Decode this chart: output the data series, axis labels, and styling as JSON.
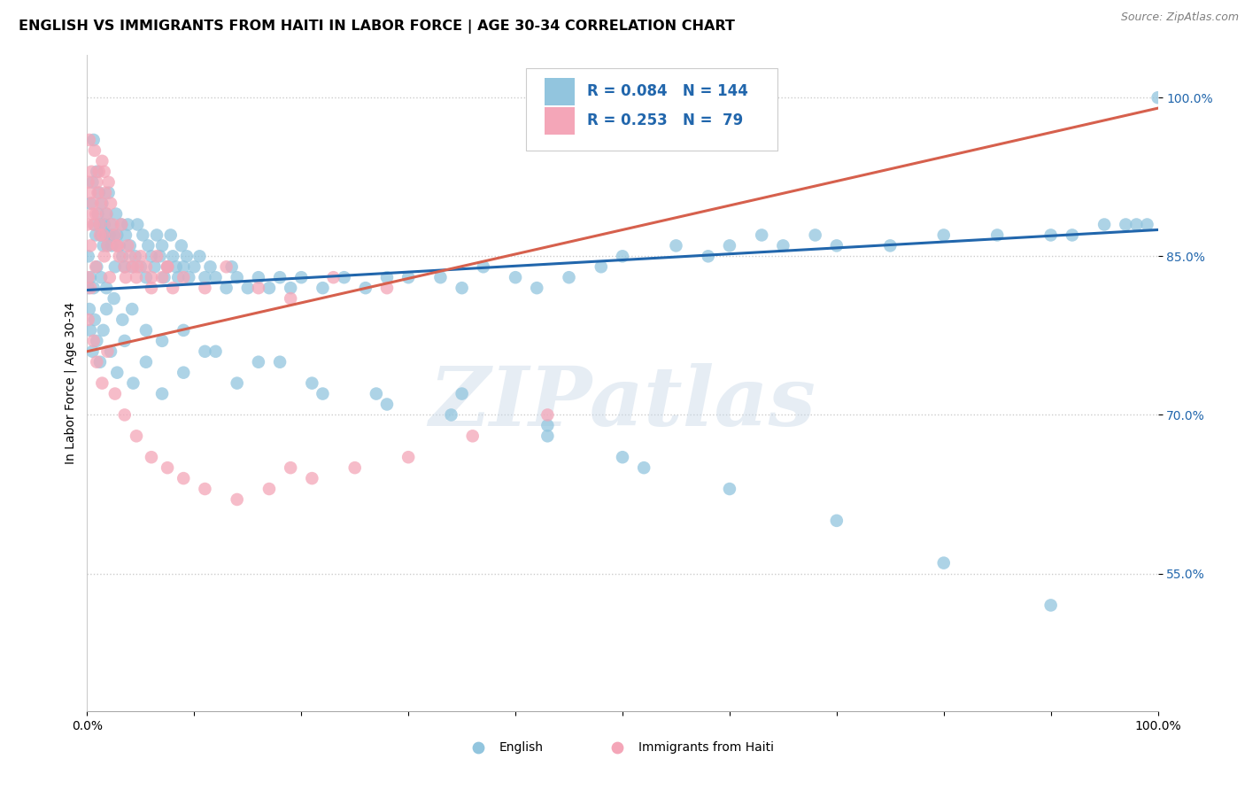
{
  "title": "ENGLISH VS IMMIGRANTS FROM HAITI IN LABOR FORCE | AGE 30-34 CORRELATION CHART",
  "source": "Source: ZipAtlas.com",
  "ylabel": "In Labor Force | Age 30-34",
  "xlim": [
    0.0,
    1.0
  ],
  "ylim": [
    0.42,
    1.04
  ],
  "yticks": [
    0.55,
    0.7,
    0.85,
    1.0
  ],
  "ytick_labels": [
    "55.0%",
    "70.0%",
    "85.0%",
    "100.0%"
  ],
  "xtick_positions": [
    0.0,
    0.1,
    0.2,
    0.3,
    0.4,
    0.5,
    0.6,
    0.7,
    0.8,
    0.9,
    1.0
  ],
  "xtick_labels": [
    "0.0%",
    "",
    "",
    "",
    "",
    "",
    "",
    "",
    "",
    "",
    "100.0%"
  ],
  "english_color": "#92c5de",
  "haiti_color": "#f4a6b8",
  "english_line_color": "#2166ac",
  "haiti_line_color": "#d6604d",
  "text_color": "#2166ac",
  "background_color": "#ffffff",
  "watermark": "ZIPatlas",
  "title_fontsize": 11.5,
  "label_fontsize": 10,
  "tick_fontsize": 10,
  "legend_text_1": "R = 0.084   N = 144",
  "legend_text_2": "R = 0.253   N =  79",
  "english_scatter": {
    "x": [
      0.003,
      0.005,
      0.006,
      0.007,
      0.008,
      0.009,
      0.01,
      0.011,
      0.012,
      0.013,
      0.014,
      0.015,
      0.016,
      0.017,
      0.018,
      0.019,
      0.02,
      0.021,
      0.022,
      0.023,
      0.025,
      0.026,
      0.027,
      0.028,
      0.03,
      0.032,
      0.033,
      0.035,
      0.036,
      0.038,
      0.04,
      0.042,
      0.045,
      0.047,
      0.05,
      0.052,
      0.055,
      0.057,
      0.06,
      0.063,
      0.065,
      0.068,
      0.07,
      0.072,
      0.075,
      0.078,
      0.08,
      0.083,
      0.085,
      0.088,
      0.09,
      0.093,
      0.095,
      0.1,
      0.105,
      0.11,
      0.115,
      0.12,
      0.13,
      0.135,
      0.14,
      0.15,
      0.16,
      0.17,
      0.18,
      0.19,
      0.2,
      0.22,
      0.24,
      0.26,
      0.28,
      0.3,
      0.33,
      0.35,
      0.37,
      0.4,
      0.42,
      0.45,
      0.48,
      0.5,
      0.55,
      0.58,
      0.6,
      0.63,
      0.65,
      0.68,
      0.7,
      0.75,
      0.8,
      0.85,
      0.9,
      0.92,
      0.95,
      0.97,
      0.98,
      0.99,
      1.0,
      0.001,
      0.002,
      0.003,
      0.005,
      0.007,
      0.009,
      0.012,
      0.015,
      0.018,
      0.022,
      0.028,
      0.035,
      0.043,
      0.055,
      0.07,
      0.09,
      0.11,
      0.14,
      0.18,
      0.22,
      0.28,
      0.35,
      0.43,
      0.5,
      0.6,
      0.7,
      0.8,
      0.9,
      0.001,
      0.003,
      0.006,
      0.009,
      0.013,
      0.018,
      0.025,
      0.033,
      0.042,
      0.055,
      0.07,
      0.09,
      0.12,
      0.16,
      0.21,
      0.27,
      0.34,
      0.43,
      0.52
    ],
    "y": [
      0.9,
      0.92,
      0.96,
      0.88,
      0.87,
      0.93,
      0.89,
      0.91,
      0.88,
      0.87,
      0.9,
      0.86,
      0.88,
      0.87,
      0.89,
      0.86,
      0.91,
      0.87,
      0.88,
      0.86,
      0.87,
      0.84,
      0.89,
      0.87,
      0.86,
      0.88,
      0.85,
      0.84,
      0.87,
      0.88,
      0.86,
      0.84,
      0.85,
      0.88,
      0.84,
      0.87,
      0.83,
      0.86,
      0.85,
      0.84,
      0.87,
      0.85,
      0.86,
      0.83,
      0.84,
      0.87,
      0.85,
      0.84,
      0.83,
      0.86,
      0.84,
      0.85,
      0.83,
      0.84,
      0.85,
      0.83,
      0.84,
      0.83,
      0.82,
      0.84,
      0.83,
      0.82,
      0.83,
      0.82,
      0.83,
      0.82,
      0.83,
      0.82,
      0.83,
      0.82,
      0.83,
      0.83,
      0.83,
      0.82,
      0.84,
      0.83,
      0.82,
      0.83,
      0.84,
      0.85,
      0.86,
      0.85,
      0.86,
      0.87,
      0.86,
      0.87,
      0.86,
      0.86,
      0.87,
      0.87,
      0.87,
      0.87,
      0.88,
      0.88,
      0.88,
      0.88,
      1.0,
      0.82,
      0.8,
      0.78,
      0.76,
      0.79,
      0.77,
      0.75,
      0.78,
      0.8,
      0.76,
      0.74,
      0.77,
      0.73,
      0.75,
      0.72,
      0.74,
      0.76,
      0.73,
      0.75,
      0.72,
      0.71,
      0.72,
      0.69,
      0.66,
      0.63,
      0.6,
      0.56,
      0.52,
      0.85,
      0.83,
      0.82,
      0.84,
      0.83,
      0.82,
      0.81,
      0.79,
      0.8,
      0.78,
      0.77,
      0.78,
      0.76,
      0.75,
      0.73,
      0.72,
      0.7,
      0.68,
      0.65
    ]
  },
  "haiti_scatter": {
    "x": [
      0.0,
      0.001,
      0.002,
      0.003,
      0.004,
      0.005,
      0.006,
      0.007,
      0.008,
      0.009,
      0.01,
      0.011,
      0.012,
      0.013,
      0.014,
      0.015,
      0.016,
      0.017,
      0.018,
      0.019,
      0.02,
      0.022,
      0.024,
      0.026,
      0.028,
      0.03,
      0.032,
      0.035,
      0.038,
      0.04,
      0.043,
      0.046,
      0.05,
      0.055,
      0.06,
      0.065,
      0.07,
      0.075,
      0.08,
      0.001,
      0.003,
      0.005,
      0.008,
      0.012,
      0.016,
      0.021,
      0.028,
      0.036,
      0.047,
      0.06,
      0.075,
      0.09,
      0.11,
      0.13,
      0.16,
      0.19,
      0.23,
      0.28,
      0.001,
      0.003,
      0.006,
      0.009,
      0.014,
      0.019,
      0.026,
      0.035,
      0.046,
      0.06,
      0.075,
      0.09,
      0.11,
      0.14,
      0.17,
      0.21,
      0.25,
      0.3,
      0.36,
      0.43,
      0.19
    ],
    "y": [
      0.88,
      0.92,
      0.96,
      0.91,
      0.93,
      0.9,
      0.88,
      0.95,
      0.89,
      0.92,
      0.91,
      0.93,
      0.88,
      0.9,
      0.94,
      0.87,
      0.93,
      0.91,
      0.89,
      0.86,
      0.92,
      0.9,
      0.88,
      0.87,
      0.86,
      0.85,
      0.88,
      0.84,
      0.86,
      0.85,
      0.84,
      0.83,
      0.85,
      0.84,
      0.83,
      0.85,
      0.83,
      0.84,
      0.82,
      0.83,
      0.86,
      0.89,
      0.84,
      0.87,
      0.85,
      0.83,
      0.86,
      0.83,
      0.84,
      0.82,
      0.84,
      0.83,
      0.82,
      0.84,
      0.82,
      0.81,
      0.83,
      0.82,
      0.79,
      0.82,
      0.77,
      0.75,
      0.73,
      0.76,
      0.72,
      0.7,
      0.68,
      0.66,
      0.65,
      0.64,
      0.63,
      0.62,
      0.63,
      0.64,
      0.65,
      0.66,
      0.68,
      0.7,
      0.65
    ]
  },
  "english_line": {
    "x0": 0.0,
    "x1": 1.0,
    "y0": 0.818,
    "y1": 0.875
  },
  "haiti_line": {
    "x0": 0.0,
    "x1": 1.0,
    "y0": 0.76,
    "y1": 0.99
  }
}
